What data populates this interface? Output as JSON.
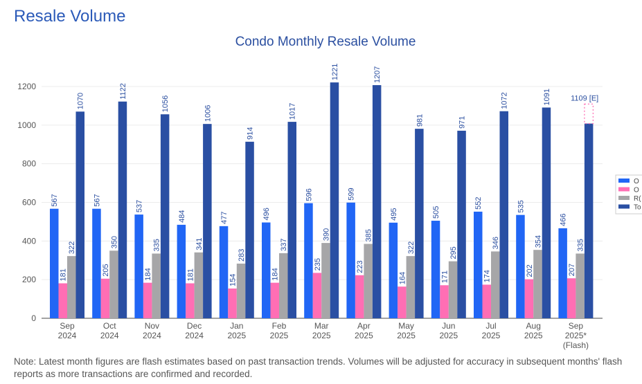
{
  "page": {
    "heading": "Resale Volume",
    "note": "Note: Latest month figures are flash estimates based on past transaction trends. Volumes will be adjusted for accuracy in subsequent months' flash reports as more transactions are confirmed and recorded."
  },
  "chart_data": {
    "type": "bar",
    "title": "Condo Monthly Resale Volume",
    "xlabel": "",
    "ylabel": "",
    "ylim": [
      0,
      1250
    ],
    "yticks": [
      0,
      200,
      400,
      600,
      800,
      1000,
      1200
    ],
    "grid": true,
    "legend_placement": "right",
    "categories": [
      [
        "Sep",
        "2024"
      ],
      [
        "Oct",
        "2024"
      ],
      [
        "Nov",
        "2024"
      ],
      [
        "Dec",
        "2024"
      ],
      [
        "Jan",
        "2025"
      ],
      [
        "Feb",
        "2025"
      ],
      [
        "Mar",
        "2025"
      ],
      [
        "Apr",
        "2025"
      ],
      [
        "May",
        "2025"
      ],
      [
        "Jun",
        "2025"
      ],
      [
        "Jul",
        "2025"
      ],
      [
        "Aug",
        "2025"
      ],
      [
        "Sep",
        "2025*",
        "(Flash)"
      ]
    ],
    "series": [
      {
        "name": "O",
        "color": "#2166f5",
        "values": [
          567,
          567,
          537,
          484,
          477,
          496,
          596,
          599,
          495,
          505,
          552,
          535,
          466
        ]
      },
      {
        "name": "O",
        "color": "#ff6eb4",
        "values": [
          181,
          205,
          184,
          181,
          154,
          184,
          235,
          223,
          164,
          171,
          174,
          202,
          207
        ]
      },
      {
        "name": "R(",
        "color": "#a6a6a8",
        "values": [
          322,
          350,
          335,
          341,
          283,
          337,
          390,
          385,
          322,
          295,
          346,
          354,
          335
        ]
      },
      {
        "name": "To",
        "color": "#2a4fa3",
        "values": [
          1070,
          1122,
          1056,
          1006,
          914,
          1017,
          1221,
          1207,
          981,
          971,
          1072,
          1091,
          1008
        ]
      }
    ],
    "value_labels": [
      [
        "567",
        "567",
        "537",
        "484",
        "477",
        "496",
        "596",
        "599",
        "495",
        "505",
        "552",
        "535",
        "466"
      ],
      [
        "181",
        "205",
        "184",
        "181",
        "154",
        "184",
        "235",
        "223",
        "164",
        "171",
        "174",
        "202",
        "207"
      ],
      [
        "322",
        "350",
        "335",
        "341",
        "283",
        "337",
        "390",
        "385",
        "322",
        "295",
        "346",
        "354",
        "335"
      ],
      [
        "1070",
        "1122",
        "1056",
        "1006",
        "914",
        "1017",
        "1221",
        "1207",
        "981",
        "971",
        "1072",
        "1091",
        ""
      ]
    ],
    "estimate": {
      "category_index": 12,
      "value": 1109,
      "label": "1109 [E]",
      "color": "#ff6eb4"
    }
  }
}
